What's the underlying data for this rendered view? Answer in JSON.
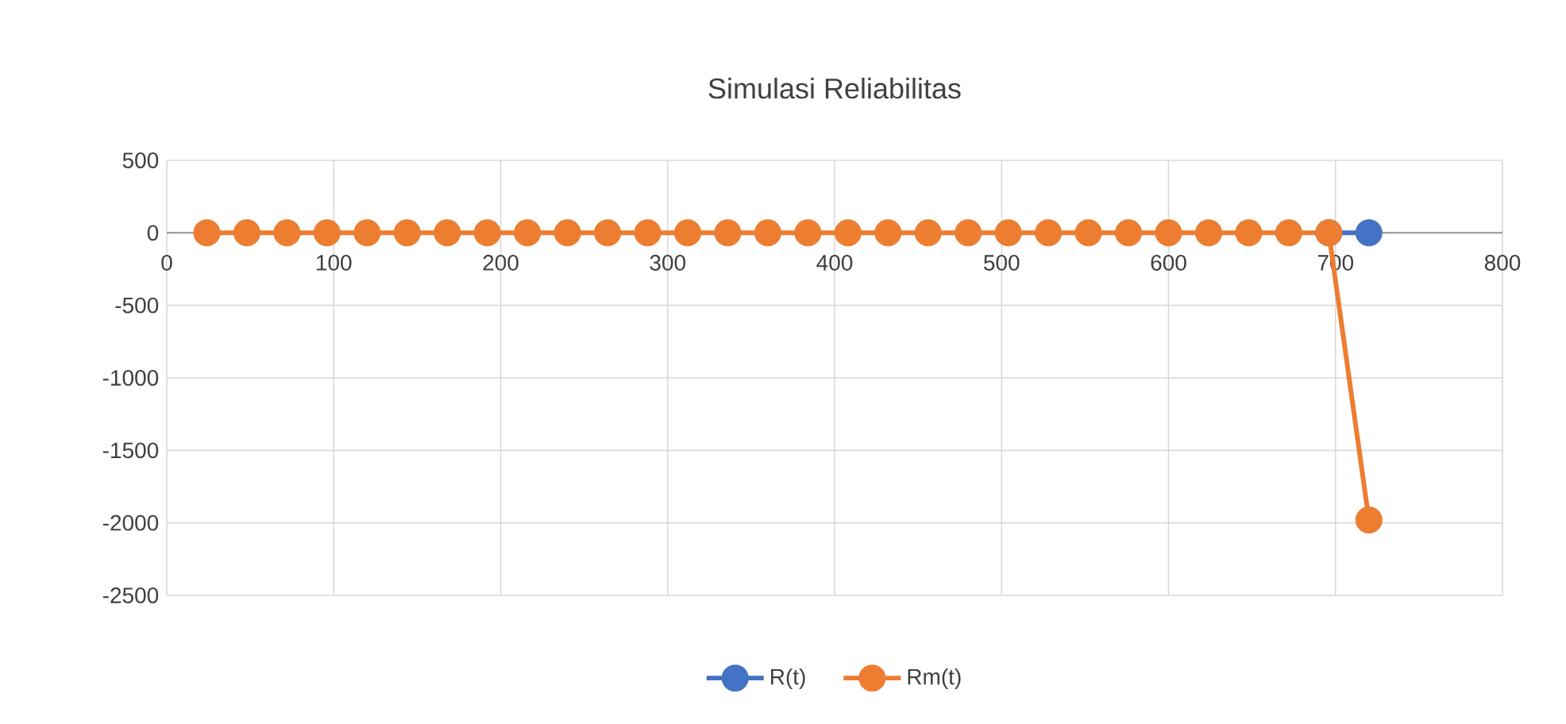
{
  "chart_data": {
    "type": "line",
    "title": "Simulasi Reliabilitas",
    "x": [
      24,
      48,
      72,
      96,
      120,
      144,
      168,
      192,
      216,
      240,
      264,
      288,
      312,
      336,
      360,
      384,
      408,
      432,
      456,
      480,
      504,
      528,
      552,
      576,
      600,
      624,
      648,
      672,
      696,
      720
    ],
    "series": [
      {
        "name": "R(t)",
        "color": "#4472c4",
        "values": [
          null,
          null,
          null,
          null,
          null,
          null,
          null,
          null,
          null,
          null,
          null,
          null,
          null,
          null,
          null,
          null,
          null,
          null,
          null,
          null,
          null,
          null,
          null,
          null,
          null,
          null,
          null,
          null,
          0,
          0
        ]
      },
      {
        "name": "Rm(t)",
        "color": "#ed7d31",
        "values": [
          0,
          0,
          0,
          0,
          0,
          0,
          0,
          0,
          0,
          0,
          0,
          0,
          0,
          0,
          0,
          0,
          0,
          0,
          0,
          0,
          0,
          0,
          0,
          0,
          0,
          0,
          0,
          0,
          0,
          -1980
        ]
      }
    ],
    "xlim": [
      0,
      800
    ],
    "xticks": [
      0,
      100,
      200,
      300,
      400,
      500,
      600,
      700,
      800
    ],
    "ylim": [
      -2500,
      500
    ],
    "yticks": [
      -2500,
      -2000,
      -1500,
      -1000,
      -500,
      0,
      500
    ],
    "grid": true,
    "legend": "bottom",
    "marker": "circle",
    "line_style": "solid"
  }
}
